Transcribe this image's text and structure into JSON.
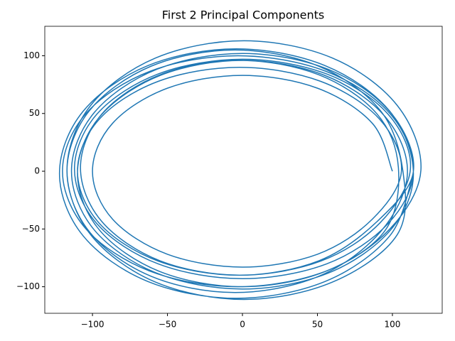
{
  "chart_data": {
    "type": "line",
    "title": "First 2 Principal Components",
    "color": "#1f77b4",
    "x": [
      100,
      86.6,
      50,
      0,
      -50,
      -86.6,
      -100,
      -86.6,
      -50,
      0,
      50,
      86.6,
      106,
      91.5,
      52,
      -2,
      -56,
      -95.5,
      -110,
      -95.5,
      -56,
      -2,
      52,
      91.5,
      112,
      97,
      56,
      0,
      -56,
      -97,
      -112,
      -97,
      -56,
      0,
      56,
      97,
      114,
      98.3,
      55.5,
      -3,
      -61.5,
      -104.3,
      -120,
      -104.3,
      -61.5,
      -3,
      55.5,
      98.3,
      119,
      103.2,
      60,
      1,
      -58,
      -101.2,
      -117,
      -101.2,
      -58,
      1,
      60,
      103.2,
      107,
      92,
      51,
      -5,
      -61,
      -102,
      -117,
      -102,
      -61,
      -5,
      51,
      92,
      110,
      95.3,
      55,
      0,
      -55,
      -95.3,
      -110,
      -95.3,
      -55,
      0,
      55,
      95.3,
      104,
      89.8,
      51,
      -2,
      -55,
      -93.8,
      -108,
      -93.8,
      -55,
      -2,
      51,
      89.8,
      114,
      98.7,
      57,
      0,
      -57,
      -98.7,
      -114,
      -98.7,
      -57,
      0,
      57,
      98.7,
      114,
      98.2,
      55,
      -4,
      -63,
      -106.2,
      -122,
      -106.2,
      -63,
      -4,
      55,
      98.2,
      114
    ],
    "values": [
      0,
      41.5,
      71.9,
      83,
      71.9,
      41.5,
      0,
      -41.5,
      -71.9,
      -83,
      -71.9,
      -41.5,
      0,
      45,
      77.9,
      90,
      77.9,
      45,
      0,
      -45,
      -77.9,
      -90,
      -77.9,
      -45,
      2,
      49.5,
      84.3,
      97,
      84.3,
      49.5,
      2,
      -45.5,
      -80.3,
      -93,
      -80.3,
      -45.5,
      0,
      50,
      86.6,
      100,
      86.6,
      50,
      0,
      -50,
      -86.6,
      -100,
      -86.6,
      -50,
      1,
      57,
      98,
      113,
      98,
      57,
      1,
      -55,
      -96,
      -111,
      -96,
      -55,
      0,
      52.5,
      90.9,
      105,
      90.9,
      52.5,
      0,
      -52.5,
      -90.9,
      -105,
      -90.9,
      -52.5,
      -2,
      47,
      82.9,
      96,
      82.9,
      47,
      -2,
      -51,
      -86.9,
      -100,
      -86.9,
      -51,
      3,
      49.5,
      83.5,
      96,
      83.5,
      49.5,
      3,
      -43.5,
      -77.5,
      -90,
      -77.5,
      -43.5,
      0,
      51,
      88.3,
      102,
      88.3,
      51,
      0,
      -51,
      -88.3,
      -102,
      -88.3,
      -51,
      -2,
      52,
      91.5,
      106,
      91.5,
      52,
      -2,
      -56,
      -95.5,
      -110,
      -95.5,
      -56,
      -2
    ],
    "xlim": [
      -131.8,
      133.2
    ],
    "ylim": [
      -123,
      125.5
    ],
    "xticks": [
      {
        "value": -100,
        "label": "−100"
      },
      {
        "value": -50,
        "label": "−50"
      },
      0,
      50,
      100
    ],
    "yticks": [
      {
        "value": -100,
        "label": "−100"
      },
      {
        "value": -50,
        "label": "−50"
      },
      0,
      50,
      100
    ]
  }
}
